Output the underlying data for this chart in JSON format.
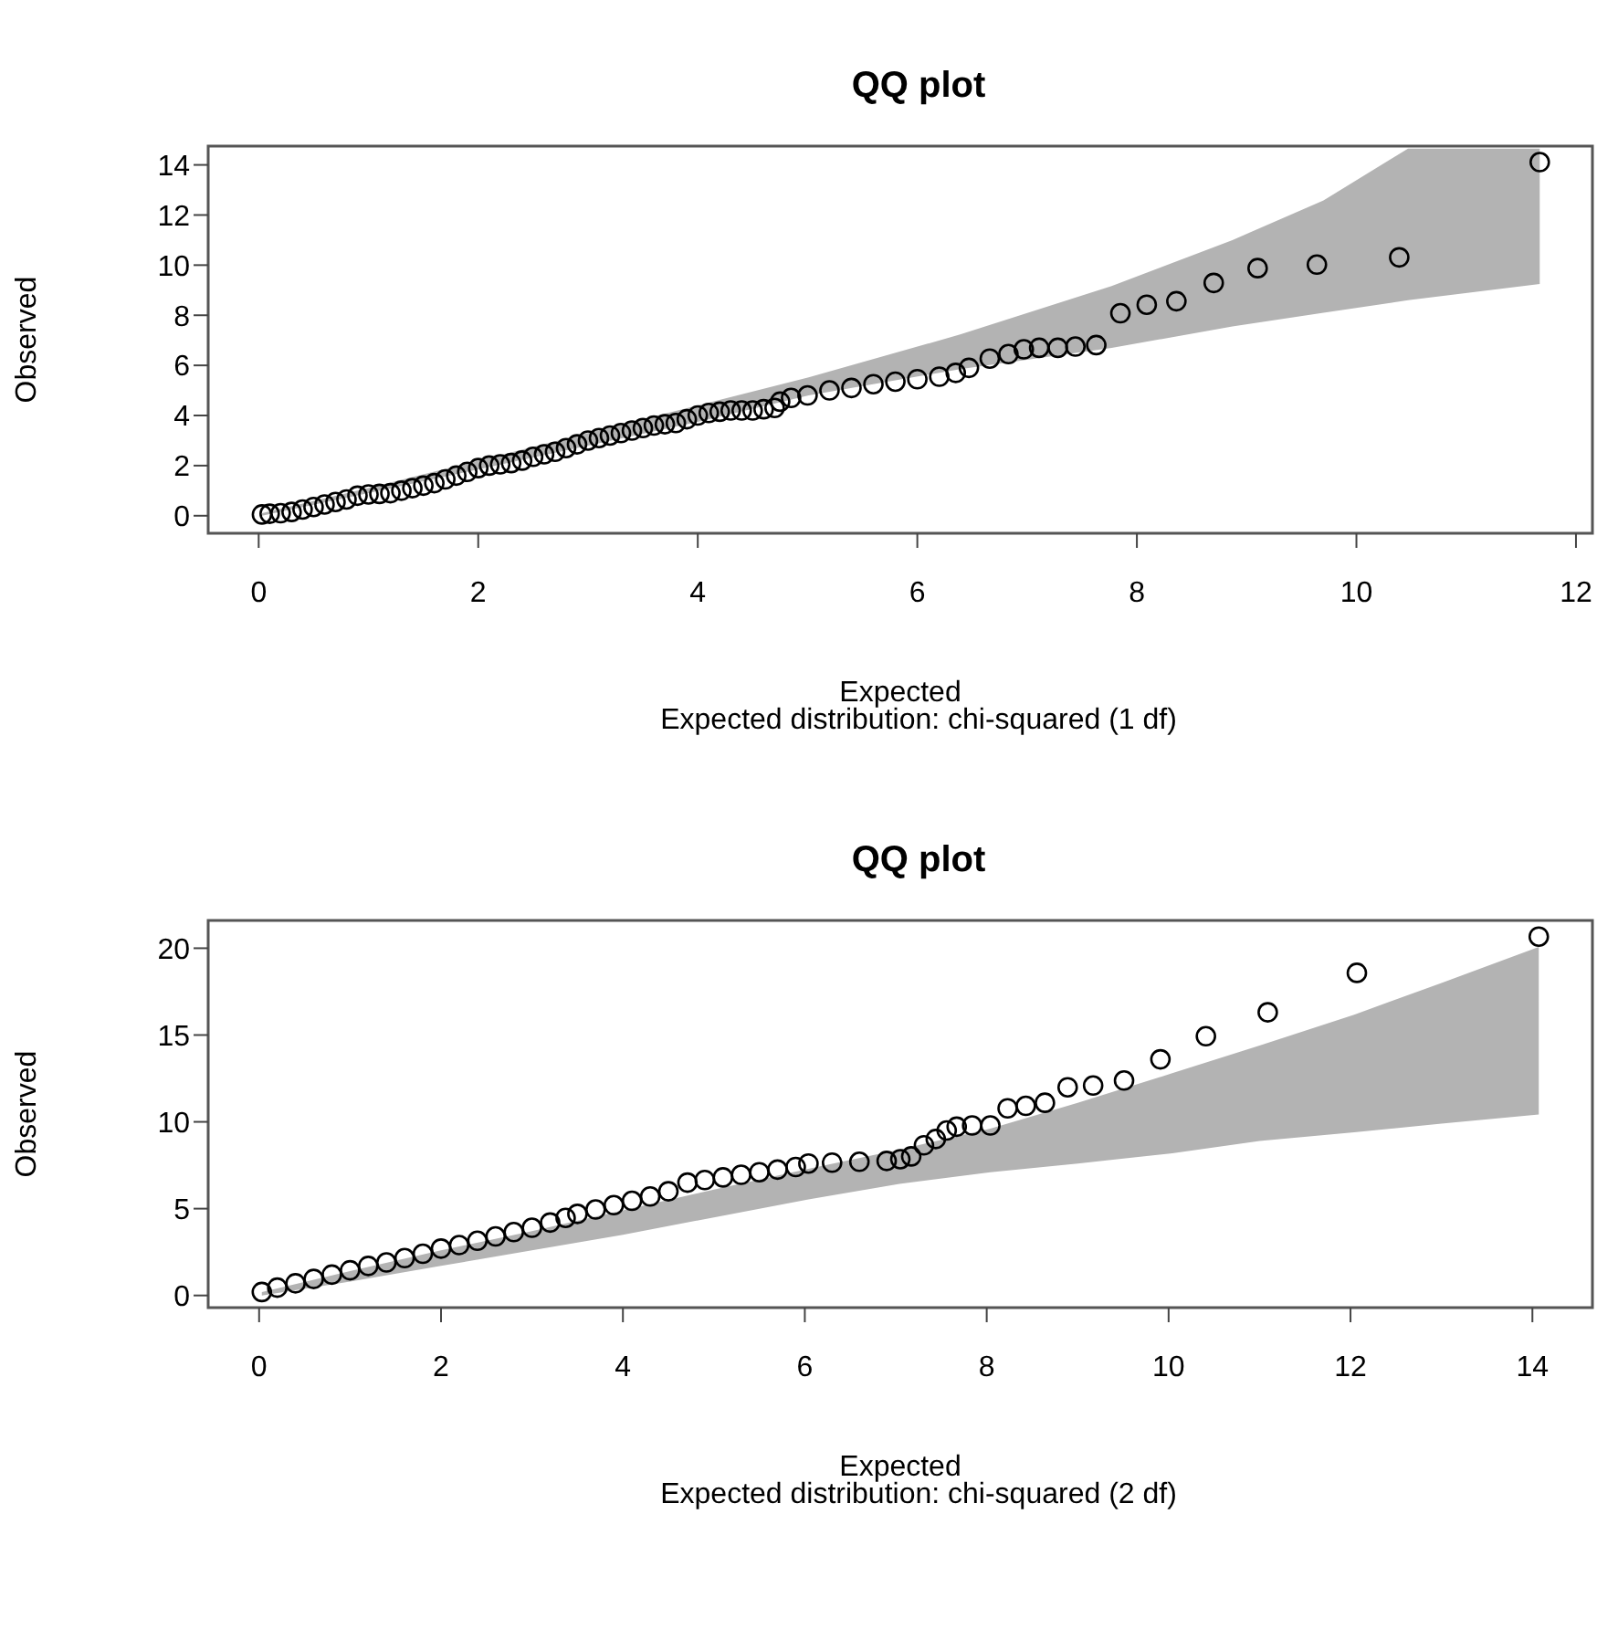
{
  "chart_data": [
    {
      "type": "scatter",
      "title": "QQ plot",
      "xlabel": "Expected",
      "ylabel": "Observed",
      "annotations": [
        "Expected distribution: chi-squared (1 df)"
      ],
      "xlim": [
        -0.46,
        12.15
      ],
      "ylim": [
        -0.7,
        14.75
      ],
      "xticks": [
        0,
        2,
        4,
        6,
        8,
        10,
        12
      ],
      "yticks": [
        0,
        2,
        4,
        6,
        8,
        10,
        12,
        14
      ],
      "grid": false,
      "marker": "circle",
      "series": [
        {
          "type": "area",
          "color": "#b3b3b3",
          "x": [
            0.03,
            1,
            2,
            3,
            4,
            5.01,
            6.39,
            7.77,
            8.87,
            9.7,
            10.47,
            11.67
          ],
          "values": [
            null,
            null,
            null,
            null,
            null,
            null,
            null,
            null,
            null,
            null,
            null,
            null
          ],
          "lower": [
            0,
            0.9,
            1.85,
            2.8,
            3.75,
            4.8,
            5.85,
            6.7,
            7.55,
            8.1,
            8.6,
            9.25
          ],
          "upper": [
            0.1,
            1.1,
            2.2,
            3.3,
            4.4,
            5.52,
            7.23,
            9.17,
            11.0,
            12.58,
            14.65,
            14.65
          ]
        },
        {
          "color": "#000000",
          "x": [
            0.03,
            0.1,
            0.2,
            0.3,
            0.4,
            0.5,
            0.6,
            0.7,
            0.8,
            0.9,
            1.0,
            1.1,
            1.2,
            1.3,
            1.4,
            1.5,
            1.6,
            1.7,
            1.8,
            1.9,
            2.0,
            2.1,
            2.2,
            2.3,
            2.4,
            2.5,
            2.6,
            2.7,
            2.8,
            2.9,
            3.0,
            3.1,
            3.2,
            3.3,
            3.4,
            3.5,
            3.6,
            3.7,
            3.8,
            3.9,
            4.0,
            4.1,
            4.2,
            4.3,
            4.4,
            4.5,
            4.6,
            4.7,
            4.75,
            4.85,
            5.0,
            5.2,
            5.4,
            5.6,
            5.8,
            6.0,
            6.2,
            6.35,
            6.47,
            6.66,
            6.83,
            6.97,
            7.11,
            7.28,
            7.44,
            7.63,
            7.85,
            8.09,
            8.36,
            8.7,
            9.1,
            9.64,
            10.39,
            11.67
          ],
          "values": [
            0.05,
            0.08,
            0.1,
            0.15,
            0.25,
            0.35,
            0.45,
            0.55,
            0.65,
            0.8,
            0.85,
            0.87,
            0.9,
            1.0,
            1.1,
            1.2,
            1.3,
            1.45,
            1.6,
            1.75,
            1.9,
            2.0,
            2.05,
            2.1,
            2.2,
            2.35,
            2.45,
            2.55,
            2.7,
            2.85,
            3.0,
            3.1,
            3.2,
            3.3,
            3.4,
            3.5,
            3.6,
            3.65,
            3.7,
            3.85,
            4.0,
            4.1,
            4.15,
            4.2,
            4.2,
            4.2,
            4.25,
            4.3,
            4.55,
            4.7,
            4.8,
            5.0,
            5.1,
            5.25,
            5.35,
            5.45,
            5.55,
            5.7,
            5.9,
            6.27,
            6.45,
            6.64,
            6.7,
            6.7,
            6.75,
            6.81,
            8.08,
            8.42,
            8.56,
            9.29,
            9.88,
            10.02,
            10.31,
            14.11
          ]
        }
      ]
    },
    {
      "type": "scatter",
      "title": "QQ plot",
      "xlabel": "Expected",
      "ylabel": "Observed",
      "annotations": [
        "Expected distribution: chi-squared (2 df)"
      ],
      "xlim": [
        -0.56,
        14.66
      ],
      "ylim": [
        -0.7,
        21.6
      ],
      "xticks": [
        0,
        2,
        4,
        6,
        8,
        10,
        12,
        14
      ],
      "yticks": [
        0,
        5,
        10,
        15,
        20
      ],
      "grid": false,
      "marker": "circle",
      "series": [
        {
          "type": "area",
          "color": "#b3b3b3",
          "x": [
            0.03,
            1,
            2,
            3,
            4,
            5,
            6.04,
            7.04,
            8.04,
            9,
            10.04,
            11,
            12.04,
            13,
            14.07
          ],
          "values": [
            null,
            null,
            null,
            null,
            null,
            null,
            null,
            null,
            null,
            null,
            null,
            null,
            null,
            null,
            null
          ],
          "lower": [
            0,
            0.8,
            1.7,
            2.6,
            3.5,
            4.5,
            5.53,
            6.42,
            7.1,
            7.6,
            8.19,
            8.9,
            9.4,
            9.9,
            10.43
          ],
          "upper": [
            0.2,
            1.4,
            2.6,
            3.7,
            4.9,
            6.1,
            7.3,
            8.4,
            9.61,
            11.1,
            12.8,
            14.4,
            16.17,
            18.0,
            20.07
          ]
        },
        {
          "color": "#000000",
          "x": [
            0.03,
            0.2,
            0.4,
            0.6,
            0.8,
            1.0,
            1.2,
            1.4,
            1.6,
            1.8,
            2.0,
            2.2,
            2.4,
            2.6,
            2.8,
            3.0,
            3.2,
            3.37,
            3.5,
            3.7,
            3.9,
            4.1,
            4.3,
            4.5,
            4.71,
            4.9,
            5.1,
            5.3,
            5.5,
            5.7,
            5.9,
            6.04,
            6.3,
            6.6,
            6.9,
            7.05,
            7.17,
            7.31,
            7.44,
            7.56,
            7.67,
            7.84,
            8.04,
            8.23,
            8.43,
            8.64,
            8.89,
            9.17,
            9.51,
            9.91,
            10.41,
            11.09,
            12.07,
            14.07
          ],
          "values": [
            0.2,
            0.45,
            0.7,
            0.95,
            1.2,
            1.45,
            1.7,
            1.9,
            2.15,
            2.4,
            2.7,
            2.9,
            3.15,
            3.4,
            3.65,
            3.9,
            4.2,
            4.47,
            4.7,
            4.95,
            5.2,
            5.45,
            5.7,
            6.0,
            6.5,
            6.65,
            6.8,
            6.95,
            7.1,
            7.25,
            7.4,
            7.6,
            7.65,
            7.7,
            7.75,
            7.85,
            8.01,
            8.65,
            9.01,
            9.5,
            9.72,
            9.79,
            9.79,
            10.78,
            10.92,
            11.1,
            11.99,
            12.09,
            12.38,
            13.6,
            14.93,
            16.31,
            18.58,
            20.67
          ]
        }
      ]
    }
  ]
}
